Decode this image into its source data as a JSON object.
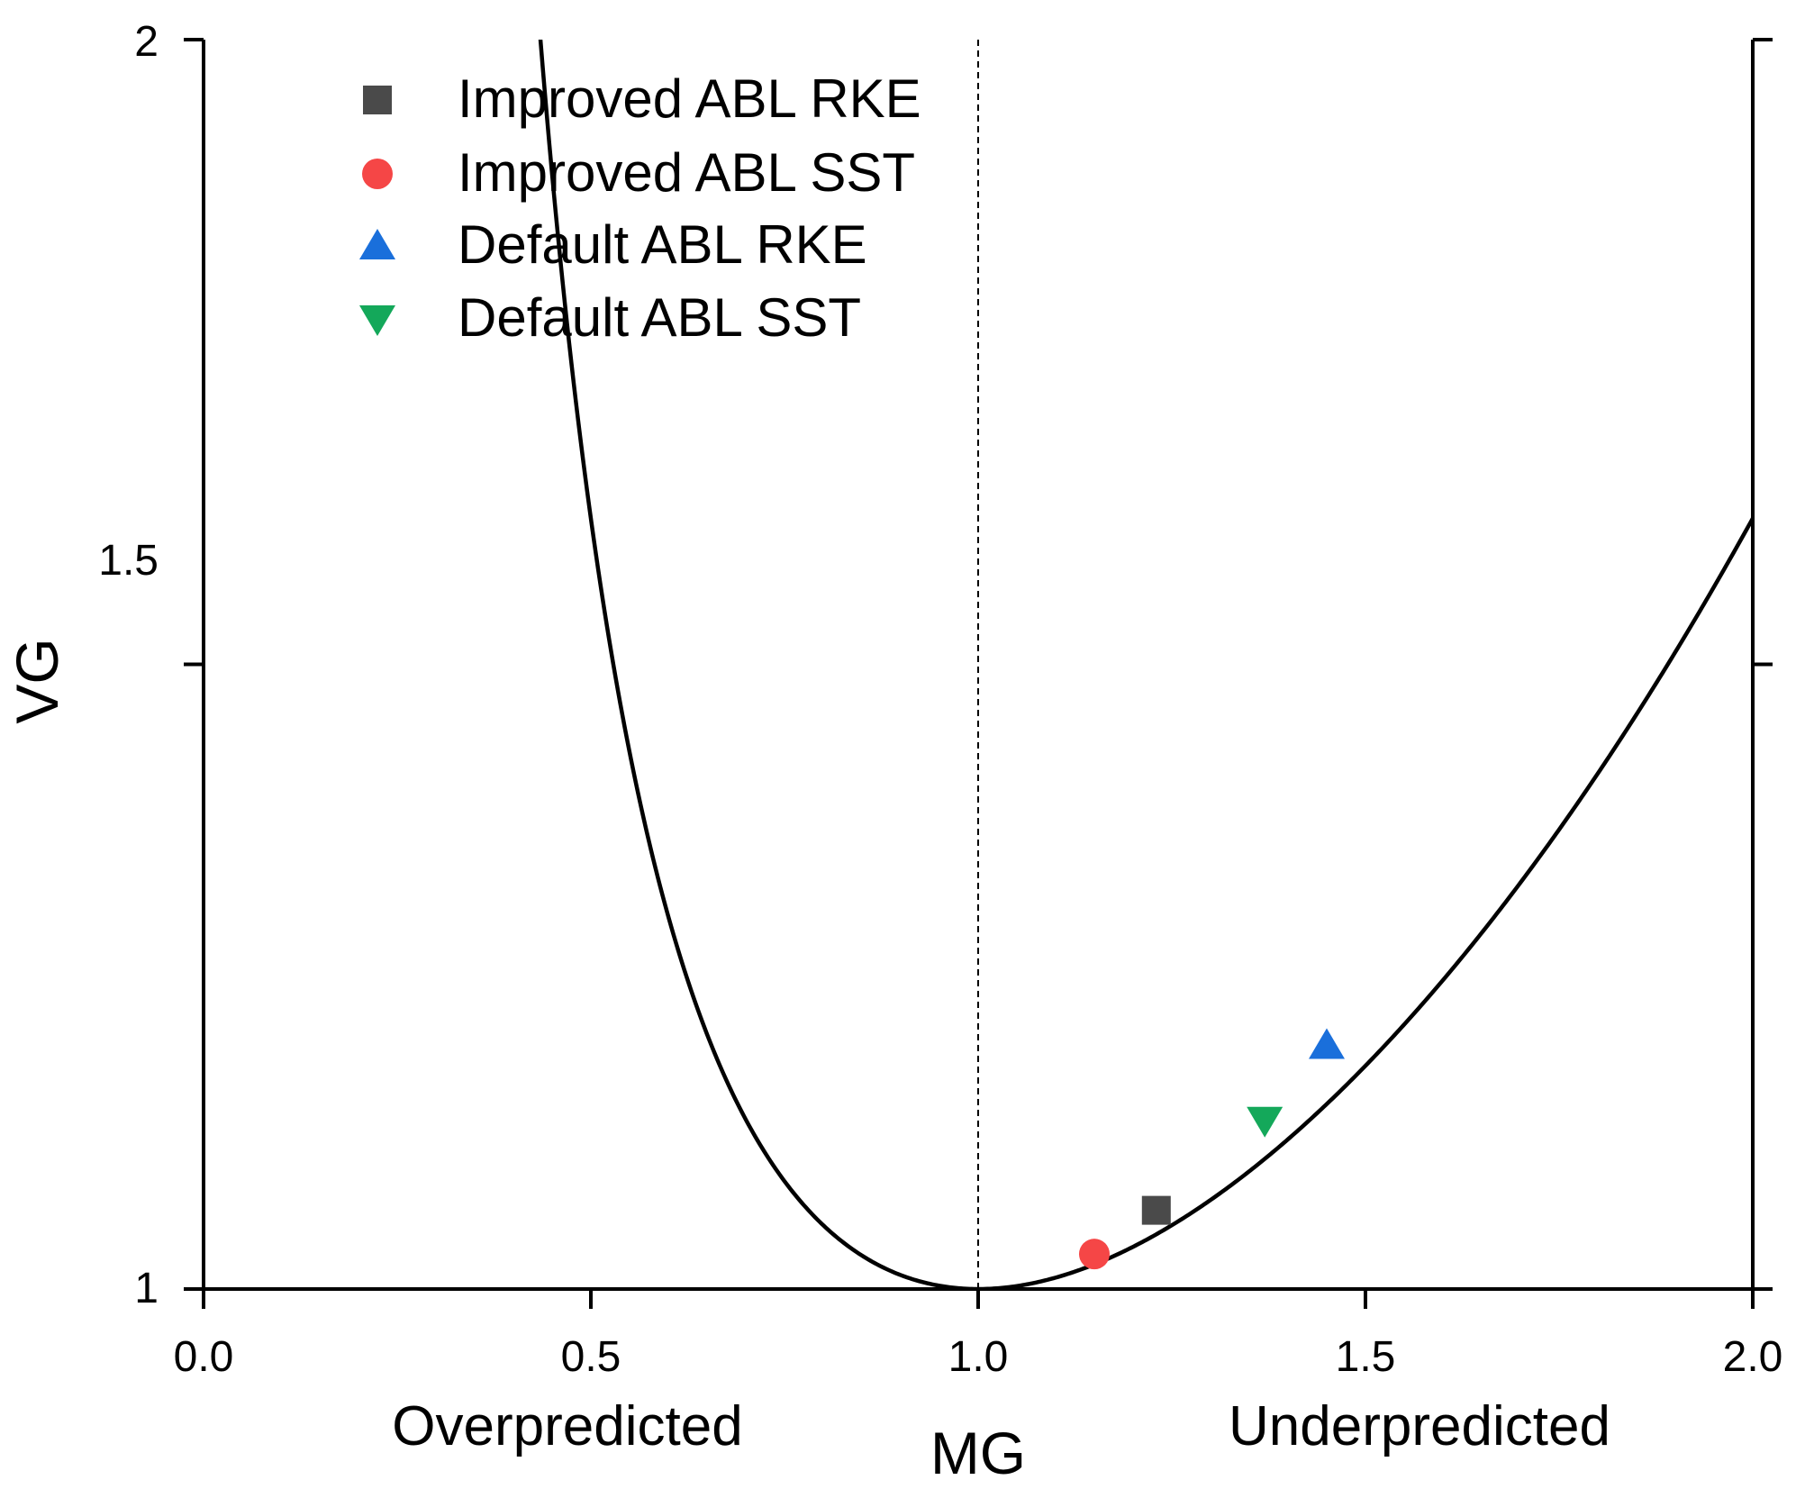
{
  "chart_data": {
    "type": "scatter",
    "title": "",
    "xlabel": "MG",
    "ylabel": "VG",
    "xlim": [
      0.0,
      2.0
    ],
    "ylim": [
      1.0,
      2.0
    ],
    "xticks": [
      "0.0",
      "0.5",
      "1.0",
      "1.5",
      "2.0"
    ],
    "xtick_values": [
      0.0,
      0.5,
      1.0,
      1.5,
      2.0
    ],
    "yticks": [
      "1",
      "1.5",
      "2"
    ],
    "ytick_values": [
      1.0,
      1.5,
      2.0
    ],
    "grid": false,
    "legend_position": "top-left",
    "reference_curve": "VG = exp((ln MG)^2)",
    "reference_line": {
      "x": 1.0,
      "style": "dashed"
    },
    "annotations": {
      "left": "Overpredicted",
      "right": "Underpredicted"
    },
    "series": [
      {
        "name": "Improved ABL RKE",
        "marker": "square",
        "color": "#4a4a4a",
        "x": 1.23,
        "y": 1.063
      },
      {
        "name": "Improved ABL SST",
        "marker": "circle",
        "color": "#f54646",
        "x": 1.15,
        "y": 1.028
      },
      {
        "name": "Default ABL RKE",
        "marker": "triangle-up",
        "color": "#1a6fdb",
        "x": 1.45,
        "y": 1.195
      },
      {
        "name": "Default ABL SST",
        "marker": "triangle-down",
        "color": "#14a85a",
        "x": 1.37,
        "y": 1.135
      }
    ]
  }
}
